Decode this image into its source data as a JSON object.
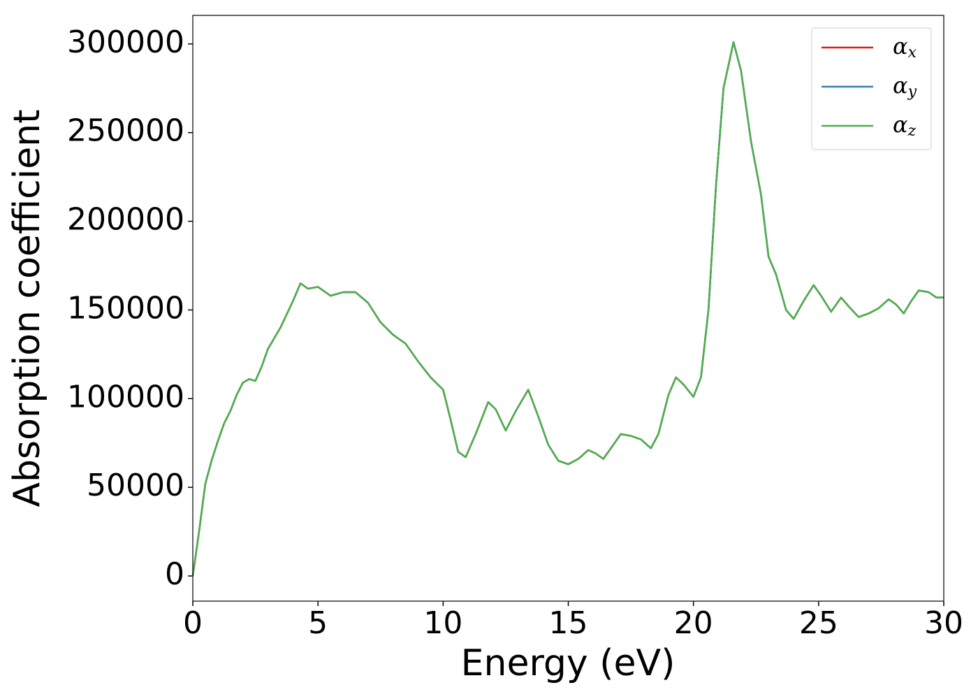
{
  "chart_data": {
    "type": "line",
    "x_label": "Energy (eV)",
    "y_label": "Absorption coefficient",
    "x": [
      0,
      0.25,
      0.5,
      0.75,
      1.0,
      1.25,
      1.5,
      1.75,
      2.0,
      2.25,
      2.5,
      2.75,
      3.0,
      3.5,
      4.0,
      4.3,
      4.6,
      5.0,
      5.5,
      6.0,
      6.5,
      7.0,
      7.5,
      8.0,
      8.5,
      9.0,
      9.5,
      10.0,
      10.3,
      10.6,
      10.9,
      11.3,
      11.8,
      12.1,
      12.5,
      12.9,
      13.4,
      13.8,
      14.2,
      14.6,
      15.0,
      15.4,
      15.8,
      16.1,
      16.4,
      16.8,
      17.1,
      17.5,
      17.9,
      18.3,
      18.6,
      19.0,
      19.3,
      19.6,
      20.0,
      20.3,
      20.6,
      20.9,
      21.2,
      21.6,
      21.9,
      22.3,
      22.7,
      23.0,
      23.3,
      23.7,
      24.0,
      24.4,
      24.8,
      25.1,
      25.5,
      25.9,
      26.2,
      26.6,
      27.0,
      27.4,
      27.8,
      28.1,
      28.4,
      28.7,
      29.0,
      29.4,
      29.7,
      30.0
    ],
    "series": [
      {
        "name": "αx",
        "color": "#e41a1c",
        "values": [
          0,
          25000,
          52000,
          65000,
          76000,
          86000,
          93000,
          102000,
          109000,
          111000,
          110000,
          118000,
          128000,
          140000,
          155000,
          165000,
          162000,
          163000,
          158000,
          160000,
          160000,
          154000,
          143000,
          136000,
          131000,
          121000,
          112000,
          105000,
          88000,
          70000,
          67000,
          80000,
          98000,
          94000,
          82000,
          93000,
          105000,
          90000,
          74000,
          65000,
          63000,
          66000,
          71000,
          69000,
          66000,
          74000,
          80000,
          79000,
          77000,
          72000,
          80000,
          102000,
          112000,
          108000,
          101000,
          112000,
          150000,
          220000,
          275000,
          301000,
          285000,
          245000,
          215000,
          180000,
          170000,
          150000,
          145000,
          155000,
          164000,
          158000,
          149000,
          157000,
          152000,
          146000,
          148000,
          151000,
          156000,
          153000,
          148000,
          155000,
          161000,
          160000,
          157000,
          157000
        ]
      },
      {
        "name": "αy",
        "color": "#377eb8",
        "values": [
          0,
          25000,
          52000,
          65000,
          76000,
          86000,
          93000,
          102000,
          109000,
          111000,
          110000,
          118000,
          128000,
          140000,
          155000,
          165000,
          162000,
          163000,
          158000,
          160000,
          160000,
          154000,
          143000,
          136000,
          131000,
          121000,
          112000,
          105000,
          88000,
          70000,
          67000,
          80000,
          98000,
          94000,
          82000,
          93000,
          105000,
          90000,
          74000,
          65000,
          63000,
          66000,
          71000,
          69000,
          66000,
          74000,
          80000,
          79000,
          77000,
          72000,
          80000,
          102000,
          112000,
          108000,
          101000,
          112000,
          150000,
          220000,
          275000,
          301000,
          285000,
          245000,
          215000,
          180000,
          170000,
          150000,
          145000,
          155000,
          164000,
          158000,
          149000,
          157000,
          152000,
          146000,
          148000,
          151000,
          156000,
          153000,
          148000,
          155000,
          161000,
          160000,
          157000,
          157000
        ]
      },
      {
        "name": "αz",
        "color": "#4daf4a",
        "values": [
          0,
          25000,
          52000,
          65000,
          76000,
          86000,
          93000,
          102000,
          109000,
          111000,
          110000,
          118000,
          128000,
          140000,
          155000,
          165000,
          162000,
          163000,
          158000,
          160000,
          160000,
          154000,
          143000,
          136000,
          131000,
          121000,
          112000,
          105000,
          88000,
          70000,
          67000,
          80000,
          98000,
          94000,
          82000,
          93000,
          105000,
          90000,
          74000,
          65000,
          63000,
          66000,
          71000,
          69000,
          66000,
          74000,
          80000,
          79000,
          77000,
          72000,
          80000,
          102000,
          112000,
          108000,
          101000,
          112000,
          150000,
          220000,
          275000,
          301000,
          285000,
          245000,
          215000,
          180000,
          170000,
          150000,
          145000,
          155000,
          164000,
          158000,
          149000,
          157000,
          152000,
          146000,
          148000,
          151000,
          156000,
          153000,
          148000,
          155000,
          161000,
          160000,
          157000,
          157000
        ]
      }
    ],
    "xlim": [
      0,
      30
    ],
    "xticks": [
      0,
      5,
      10,
      15,
      20,
      25,
      30
    ],
    "ylim": [
      -14200,
      316100
    ],
    "yticks": [
      0,
      50000,
      100000,
      150000,
      200000,
      250000,
      300000
    ],
    "legend": "upper right"
  }
}
